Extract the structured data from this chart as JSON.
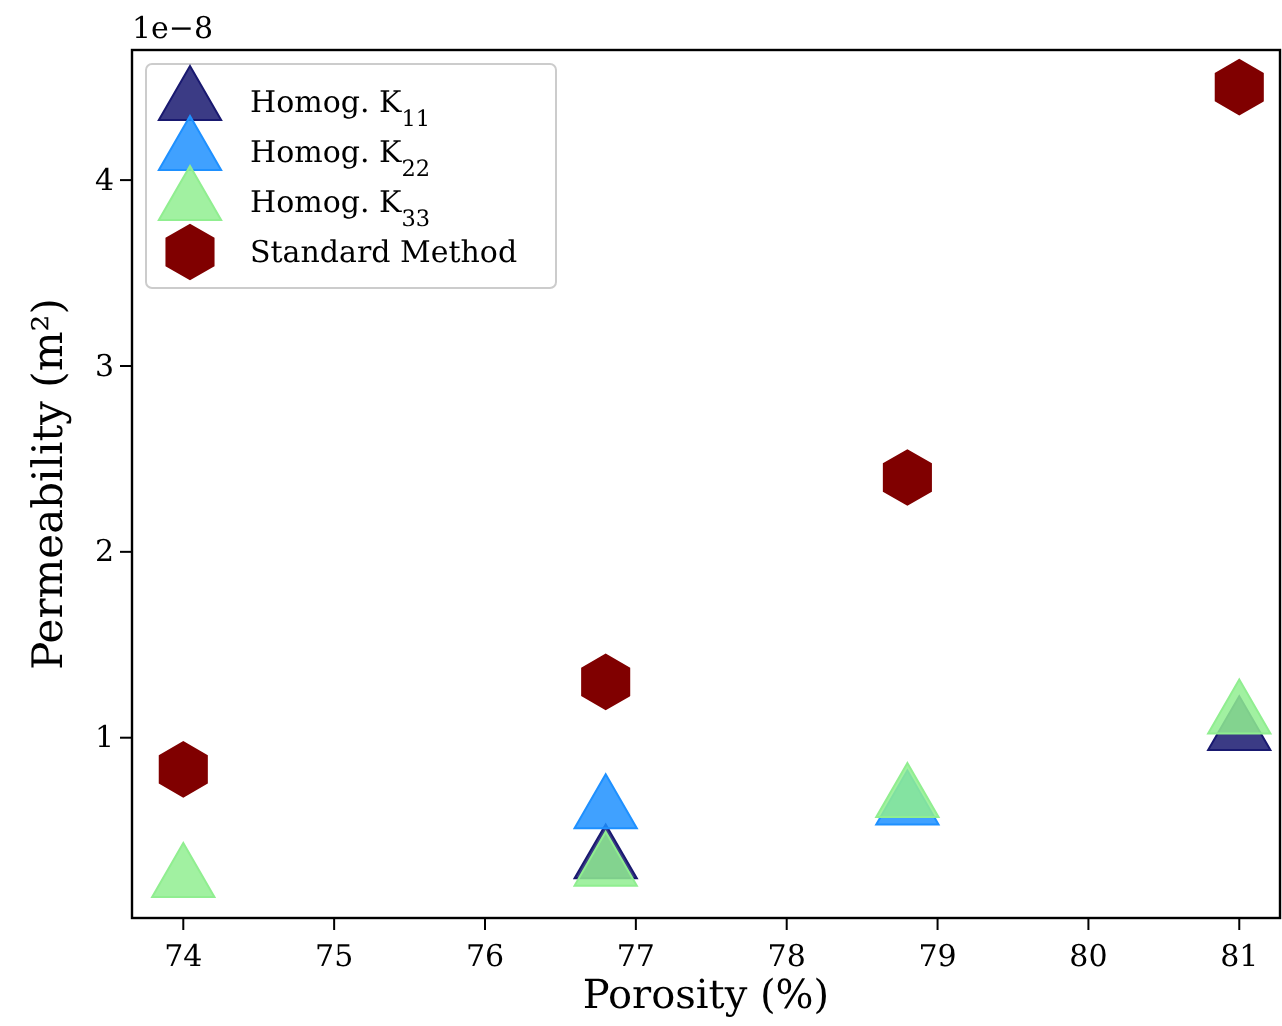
{
  "chart_data": {
    "type": "scatter",
    "xlabel": "Porosity (%)",
    "ylabel": "Permeability (m²)",
    "x": [
      74,
      76.8,
      78.8,
      81
    ],
    "xlim": [
      73.66,
      81.27
    ],
    "xticks": [
      74,
      75,
      76,
      77,
      78,
      79,
      80,
      81
    ],
    "ylim": [
      0.03,
      4.7
    ],
    "yticks": [
      1,
      2,
      3,
      4
    ],
    "annotations": [
      "1e−8"
    ],
    "legend": "top left",
    "grid": false,
    "series": [
      {
        "name": "Homog. K$_{11}$",
        "color": "#191970",
        "marker": "triangle",
        "values": [
          null,
          0.34,
          null,
          1.03
        ]
      },
      {
        "name": "Homog. K$_{22}$",
        "color": "#1e90ff",
        "marker": "triangle",
        "values": [
          null,
          0.61,
          0.63,
          null
        ]
      },
      {
        "name": "Homog. K$_{33}$",
        "color": "#90ee90",
        "marker": "triangle",
        "values": [
          0.24,
          0.3,
          0.67,
          1.12
        ]
      },
      {
        "name": "Standard Method",
        "color": "#800000",
        "values": [
          0.83,
          1.3,
          2.4,
          4.5
        ]
      }
    ]
  }
}
